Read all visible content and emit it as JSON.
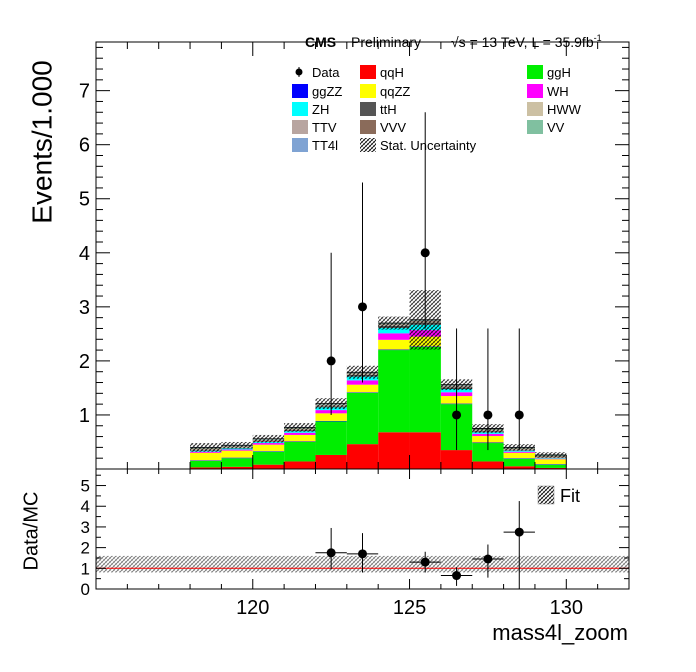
{
  "header": {
    "experiment": "CMS",
    "status": "Preliminary",
    "sqrt_s": "√s = 13 TeV, L = 35.9fb",
    "lumi_exponent": "-1"
  },
  "chart_data": {
    "type": "bar",
    "stacked": true,
    "xlabel": "mass4l_zoom",
    "ylabel": "Events/1.000",
    "xlim": [
      115,
      132
    ],
    "ylim": [
      0,
      7.9
    ],
    "xticks": [
      120,
      125,
      130
    ],
    "yticks": [
      1,
      2,
      3,
      4,
      5,
      6,
      7
    ],
    "bin_edges": [
      118,
      119,
      120,
      121,
      122,
      123,
      124,
      125,
      126,
      127,
      128,
      129,
      130
    ],
    "series": [
      {
        "name": "qqH",
        "color": "#ff0000",
        "values": [
          0.03,
          0.04,
          0.08,
          0.14,
          0.26,
          0.46,
          0.68,
          0.68,
          0.35,
          0.14,
          0.05,
          0.02
        ]
      },
      {
        "name": "ggH",
        "color": "#00ee00",
        "values": [
          0.12,
          0.16,
          0.24,
          0.36,
          0.62,
          0.95,
          1.52,
          1.58,
          0.85,
          0.34,
          0.14,
          0.06
        ]
      },
      {
        "name": "ggZZ",
        "color": "#0000ff",
        "values": [
          0.01,
          0.01,
          0.01,
          0.01,
          0.01,
          0.01,
          0.01,
          0.01,
          0.01,
          0.01,
          0.01,
          0.01
        ]
      },
      {
        "name": "qqZZ",
        "color": "#ffff00",
        "values": [
          0.14,
          0.13,
          0.12,
          0.12,
          0.14,
          0.14,
          0.18,
          0.18,
          0.14,
          0.12,
          0.1,
          0.09
        ]
      },
      {
        "name": "WH",
        "color": "#ff00ff",
        "values": [
          0.02,
          0.02,
          0.03,
          0.04,
          0.06,
          0.08,
          0.12,
          0.12,
          0.07,
          0.04,
          0.02,
          0.01
        ]
      },
      {
        "name": "ZH",
        "color": "#00ffff",
        "values": [
          0.02,
          0.02,
          0.02,
          0.03,
          0.05,
          0.07,
          0.1,
          0.1,
          0.06,
          0.03,
          0.02,
          0.01
        ]
      },
      {
        "name": "ttH",
        "color": "#555555",
        "values": [
          0.01,
          0.01,
          0.01,
          0.02,
          0.02,
          0.03,
          0.04,
          0.04,
          0.03,
          0.02,
          0.01,
          0.01
        ]
      },
      {
        "name": "HWW",
        "color": "#ccc0a3",
        "values": [
          0.01,
          0.01,
          0.01,
          0.01,
          0.01,
          0.01,
          0.01,
          0.01,
          0.01,
          0.01,
          0.01,
          0.01
        ]
      },
      {
        "name": "TTV",
        "color": "#b8a5a0",
        "values": [
          0.01,
          0.01,
          0.01,
          0.01,
          0.01,
          0.01,
          0.01,
          0.01,
          0.01,
          0.01,
          0.01,
          0.01
        ]
      },
      {
        "name": "VVV",
        "color": "#8a6b5a",
        "values": [
          0.01,
          0.01,
          0.01,
          0.01,
          0.01,
          0.01,
          0.01,
          0.01,
          0.01,
          0.01,
          0.01,
          0.01
        ]
      },
      {
        "name": "VV",
        "color": "#80c0a0",
        "values": [
          0.01,
          0.01,
          0.01,
          0.01,
          0.01,
          0.01,
          0.01,
          0.01,
          0.01,
          0.01,
          0.01,
          0.01
        ]
      },
      {
        "name": "TT4l",
        "color": "#7fa3d3",
        "values": [
          0.01,
          0.01,
          0.01,
          0.01,
          0.01,
          0.01,
          0.01,
          0.01,
          0.01,
          0.01,
          0.01,
          0.01
        ]
      }
    ],
    "stat_uncertainty": {
      "name": "Stat. Uncertainty",
      "half_widths": [
        0.08,
        0.06,
        0.07,
        0.08,
        0.1,
        0.12,
        0.12,
        0.55,
        0.1,
        0.08,
        0.06,
        0.05
      ]
    },
    "data": {
      "name": "Data",
      "x": [
        122.5,
        123.5,
        125.5,
        126.5,
        127.5,
        128.5
      ],
      "y": [
        2,
        3,
        4,
        1,
        1,
        1
      ],
      "err_low": [
        1.0,
        1.4,
        1.4,
        0.65,
        0.65,
        0.65
      ],
      "err_high": [
        2.0,
        2.3,
        2.6,
        1.6,
        1.6,
        1.6
      ]
    },
    "legend_order": [
      "Data",
      "qqH",
      "ggH",
      "ggZZ",
      "qqZZ",
      "WH",
      "ZH",
      "ttH",
      "HWW",
      "TTV",
      "VVV",
      "VV",
      "TT4l",
      "Stat. Uncertainty"
    ],
    "legend_placement": "top",
    "ratio": {
      "ylabel": "Data/MC",
      "ylim": [
        0,
        5.8
      ],
      "yticks": [
        0,
        1,
        2,
        3,
        4,
        5
      ],
      "band": [
        0.8,
        1.6
      ],
      "band_label": "Fit",
      "x": [
        122.5,
        123.5,
        125.5,
        126.5,
        127.5,
        128.5
      ],
      "y": [
        1.75,
        1.7,
        1.3,
        0.65,
        1.45,
        2.75
      ],
      "err_low": [
        0.8,
        0.9,
        0.5,
        0.5,
        0.9,
        2.75
      ],
      "err_high": [
        1.2,
        1.0,
        0.5,
        0.4,
        0.7,
        1.5
      ],
      "xerr": [
        0.5,
        0.5,
        0.5,
        0.5,
        0.5,
        0.5
      ]
    }
  }
}
